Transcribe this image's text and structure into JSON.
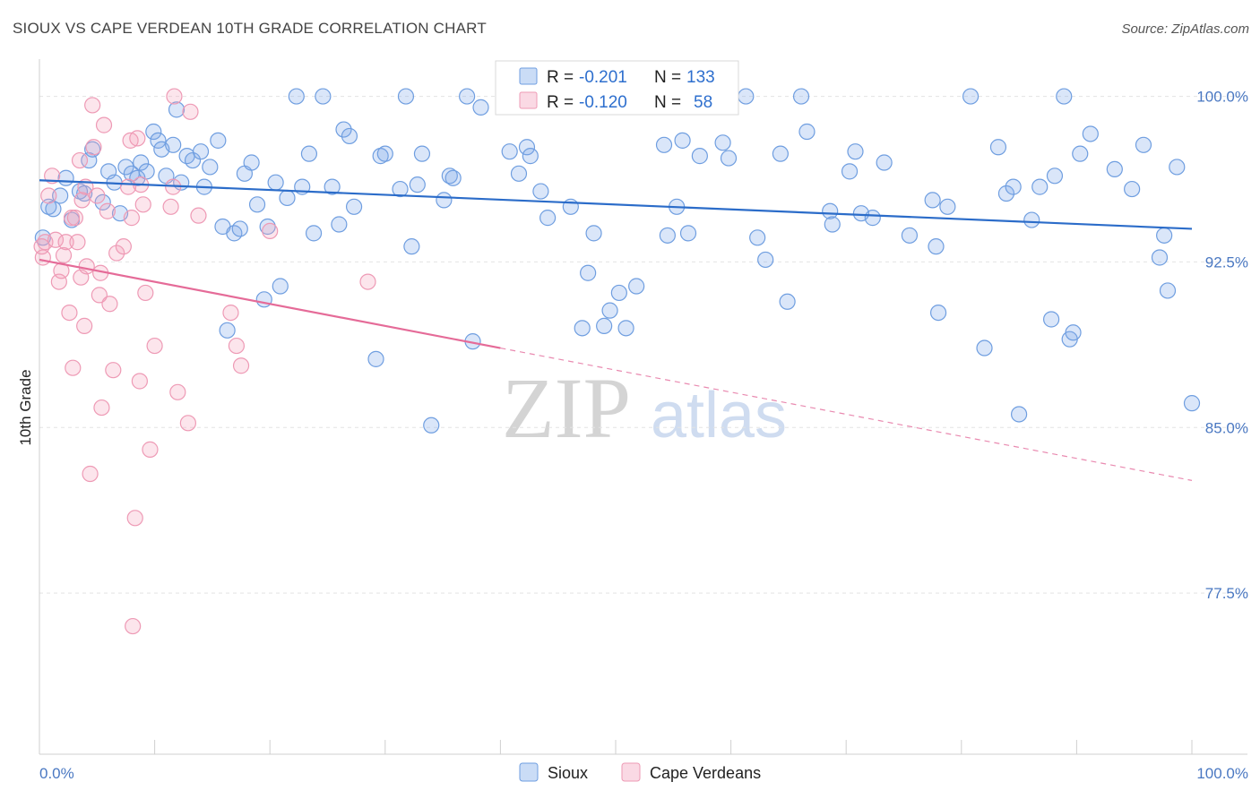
{
  "header": {
    "title": "SIOUX VS CAPE VERDEAN 10TH GRADE CORRELATION CHART",
    "source": "Source: ZipAtlas.com"
  },
  "watermark": {
    "zip": "ZIP",
    "atlas": "atlas"
  },
  "legend": {
    "rows": [
      {
        "r_label": "R = ",
        "r_value": "-0.201",
        "n_label": "N = ",
        "n_value": "133",
        "color": "#7ba7e8"
      },
      {
        "r_label": "R = ",
        "r_value": "-0.120",
        "n_label": "N = ",
        "n_value": "58",
        "color": "#f3a0bb"
      }
    ]
  },
  "chart_data": {
    "type": "scatter",
    "title": "SIOUX VS CAPE VERDEAN 10TH GRADE CORRELATION CHART",
    "xlabel": "",
    "ylabel": "10th Grade",
    "xlim": [
      0,
      100
    ],
    "ylim": [
      70.2,
      101.2
    ],
    "x_tick_labels": [
      "0.0%",
      "100.0%"
    ],
    "y_ticks": [
      100.0,
      92.5,
      85.0,
      77.5
    ],
    "y_tick_labels": [
      "100.0%",
      "92.5%",
      "85.0%",
      "77.5%"
    ],
    "grid": true,
    "legend_position": "top-center",
    "series": [
      {
        "name": "Sioux",
        "color": "#7ba7e8",
        "trend": {
          "x0": 0,
          "y0": 96.2,
          "x1": 100,
          "y1": 94.0
        },
        "points": [
          [
            0.3,
            93.6
          ],
          [
            0.8,
            95.0
          ],
          [
            1.2,
            94.9
          ],
          [
            1.8,
            95.5
          ],
          [
            2.3,
            96.3
          ],
          [
            2.8,
            94.4
          ],
          [
            3.5,
            95.7
          ],
          [
            3.9,
            95.6
          ],
          [
            4.3,
            97.1
          ],
          [
            4.6,
            97.6
          ],
          [
            5.5,
            95.2
          ],
          [
            6.0,
            96.6
          ],
          [
            6.5,
            96.1
          ],
          [
            7.0,
            94.7
          ],
          [
            7.5,
            96.8
          ],
          [
            8.0,
            96.5
          ],
          [
            8.5,
            96.3
          ],
          [
            8.8,
            97.0
          ],
          [
            9.3,
            96.6
          ],
          [
            9.9,
            98.4
          ],
          [
            10.3,
            98.0
          ],
          [
            10.6,
            97.6
          ],
          [
            11.0,
            96.4
          ],
          [
            11.6,
            97.8
          ],
          [
            11.9,
            99.4
          ],
          [
            12.3,
            96.1
          ],
          [
            12.8,
            97.3
          ],
          [
            13.3,
            97.1
          ],
          [
            14.0,
            97.5
          ],
          [
            14.3,
            95.9
          ],
          [
            14.8,
            96.8
          ],
          [
            15.5,
            98.0
          ],
          [
            15.9,
            94.1
          ],
          [
            16.3,
            89.4
          ],
          [
            16.9,
            93.8
          ],
          [
            17.4,
            94.0
          ],
          [
            17.8,
            96.5
          ],
          [
            18.4,
            97.0
          ],
          [
            18.9,
            95.1
          ],
          [
            19.5,
            90.8
          ],
          [
            19.8,
            94.1
          ],
          [
            20.5,
            96.1
          ],
          [
            20.9,
            91.4
          ],
          [
            21.5,
            95.4
          ],
          [
            22.3,
            100.0
          ],
          [
            22.8,
            95.9
          ],
          [
            23.4,
            97.4
          ],
          [
            23.8,
            93.8
          ],
          [
            24.6,
            100.0
          ],
          [
            25.4,
            95.9
          ],
          [
            26.0,
            94.2
          ],
          [
            26.4,
            98.5
          ],
          [
            26.9,
            98.2
          ],
          [
            27.3,
            95.0
          ],
          [
            29.2,
            88.1
          ],
          [
            29.6,
            97.3
          ],
          [
            30.0,
            97.4
          ],
          [
            31.3,
            95.8
          ],
          [
            31.8,
            100.0
          ],
          [
            32.3,
            93.2
          ],
          [
            32.8,
            96.0
          ],
          [
            33.2,
            97.4
          ],
          [
            34.0,
            85.1
          ],
          [
            35.1,
            95.3
          ],
          [
            35.6,
            96.4
          ],
          [
            35.9,
            96.3
          ],
          [
            37.1,
            100.0
          ],
          [
            37.6,
            88.9
          ],
          [
            38.3,
            99.5
          ],
          [
            40.8,
            97.5
          ],
          [
            41.6,
            96.5
          ],
          [
            42.3,
            97.7
          ],
          [
            42.6,
            97.3
          ],
          [
            43.5,
            95.7
          ],
          [
            44.1,
            94.5
          ],
          [
            45.1,
            100.0
          ],
          [
            46.1,
            95.0
          ],
          [
            47.1,
            89.5
          ],
          [
            47.6,
            92.0
          ],
          [
            48.1,
            93.8
          ],
          [
            49.0,
            89.6
          ],
          [
            49.5,
            90.3
          ],
          [
            50.3,
            91.1
          ],
          [
            50.9,
            89.5
          ],
          [
            51.8,
            91.4
          ],
          [
            54.2,
            97.8
          ],
          [
            54.5,
            93.7
          ],
          [
            55.3,
            95.0
          ],
          [
            55.8,
            98.0
          ],
          [
            56.3,
            93.8
          ],
          [
            57.3,
            97.3
          ],
          [
            59.3,
            97.9
          ],
          [
            59.8,
            97.2
          ],
          [
            61.3,
            100.0
          ],
          [
            62.3,
            93.6
          ],
          [
            63.0,
            92.6
          ],
          [
            64.3,
            97.4
          ],
          [
            64.9,
            90.7
          ],
          [
            66.1,
            100.0
          ],
          [
            66.6,
            98.4
          ],
          [
            68.6,
            94.8
          ],
          [
            68.8,
            94.2
          ],
          [
            70.3,
            96.6
          ],
          [
            70.8,
            97.5
          ],
          [
            71.3,
            94.7
          ],
          [
            72.3,
            94.5
          ],
          [
            73.3,
            97.0
          ],
          [
            75.5,
            93.7
          ],
          [
            77.5,
            95.3
          ],
          [
            77.8,
            93.2
          ],
          [
            78.0,
            90.2
          ],
          [
            78.8,
            95.0
          ],
          [
            80.8,
            100.0
          ],
          [
            82.0,
            88.6
          ],
          [
            83.2,
            97.7
          ],
          [
            83.9,
            95.6
          ],
          [
            84.5,
            95.9
          ],
          [
            85.0,
            85.6
          ],
          [
            86.1,
            94.4
          ],
          [
            86.8,
            95.9
          ],
          [
            87.8,
            89.9
          ],
          [
            88.1,
            96.4
          ],
          [
            88.9,
            100.0
          ],
          [
            89.4,
            89.0
          ],
          [
            89.7,
            89.3
          ],
          [
            90.3,
            97.4
          ],
          [
            91.2,
            98.3
          ],
          [
            93.3,
            96.7
          ],
          [
            94.8,
            95.8
          ],
          [
            95.8,
            97.8
          ],
          [
            97.2,
            92.7
          ],
          [
            97.6,
            93.7
          ],
          [
            97.9,
            91.2
          ],
          [
            98.7,
            96.8
          ],
          [
            100.0,
            86.1
          ]
        ]
      },
      {
        "name": "Cape Verdeans",
        "color": "#f3a0bb",
        "trend": {
          "x0": 0,
          "y0": 92.6,
          "x1": 40,
          "y1": 88.6,
          "dashed_x1": 100,
          "dashed_y1": 82.6
        },
        "points": [
          [
            0.3,
            92.7
          ],
          [
            0.5,
            93.4
          ],
          [
            0.8,
            95.5
          ],
          [
            1.1,
            96.4
          ],
          [
            1.4,
            93.5
          ],
          [
            1.7,
            91.6
          ],
          [
            1.9,
            92.1
          ],
          [
            2.1,
            92.8
          ],
          [
            2.3,
            93.4
          ],
          [
            2.6,
            90.2
          ],
          [
            2.8,
            94.5
          ],
          [
            2.9,
            87.7
          ],
          [
            3.1,
            94.5
          ],
          [
            3.3,
            93.4
          ],
          [
            3.5,
            97.1
          ],
          [
            3.6,
            91.8
          ],
          [
            3.7,
            95.3
          ],
          [
            3.9,
            89.6
          ],
          [
            4.0,
            95.9
          ],
          [
            4.1,
            92.3
          ],
          [
            4.4,
            82.9
          ],
          [
            4.6,
            99.6
          ],
          [
            4.7,
            97.7
          ],
          [
            5.0,
            95.5
          ],
          [
            5.2,
            91.0
          ],
          [
            5.3,
            92.0
          ],
          [
            5.4,
            85.9
          ],
          [
            5.6,
            98.7
          ],
          [
            5.9,
            94.8
          ],
          [
            6.1,
            90.6
          ],
          [
            6.4,
            87.6
          ],
          [
            6.7,
            92.9
          ],
          [
            7.3,
            93.2
          ],
          [
            7.7,
            95.9
          ],
          [
            7.9,
            98.0
          ],
          [
            8.1,
            76.0
          ],
          [
            8.3,
            80.9
          ],
          [
            8.5,
            98.1
          ],
          [
            8.7,
            87.1
          ],
          [
            8.8,
            96.0
          ],
          [
            9.0,
            95.1
          ],
          [
            9.2,
            91.1
          ],
          [
            9.6,
            84.0
          ],
          [
            10.0,
            88.7
          ],
          [
            11.4,
            95.0
          ],
          [
            11.6,
            95.9
          ],
          [
            11.7,
            100.0
          ],
          [
            12.0,
            86.6
          ],
          [
            12.9,
            85.2
          ],
          [
            13.1,
            99.3
          ],
          [
            13.8,
            94.6
          ],
          [
            16.6,
            90.2
          ],
          [
            17.1,
            88.7
          ],
          [
            17.5,
            87.8
          ],
          [
            20.0,
            93.9
          ],
          [
            28.5,
            91.6
          ],
          [
            0.2,
            93.2
          ],
          [
            8.0,
            94.5
          ]
        ]
      }
    ]
  }
}
